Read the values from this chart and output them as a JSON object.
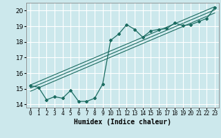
{
  "xlabel": "Humidex (Indice chaleur)",
  "bg_color": "#cce8ec",
  "grid_color": "#ffffff",
  "line_color": "#1a6b60",
  "xlim": [
    -0.5,
    23.5
  ],
  "ylim": [
    13.8,
    20.5
  ],
  "xticks": [
    0,
    1,
    2,
    3,
    4,
    5,
    6,
    7,
    8,
    9,
    10,
    11,
    12,
    13,
    14,
    15,
    16,
    17,
    18,
    19,
    20,
    21,
    22,
    23
  ],
  "yticks": [
    14,
    15,
    16,
    17,
    18,
    19,
    20
  ],
  "main_series_x": [
    0,
    1,
    2,
    3,
    4,
    5,
    6,
    7,
    8,
    9,
    10,
    11,
    12,
    13,
    14,
    15,
    16,
    17,
    18,
    19,
    20,
    21,
    22,
    23
  ],
  "main_series_y": [
    15.2,
    15.1,
    14.3,
    14.5,
    14.4,
    14.9,
    14.2,
    14.2,
    14.4,
    15.3,
    18.1,
    18.5,
    19.1,
    18.8,
    18.3,
    18.7,
    18.8,
    18.85,
    19.2,
    19.05,
    19.1,
    19.3,
    19.5,
    20.2
  ],
  "regression_lines": [
    {
      "x": [
        0,
        23
      ],
      "y": [
        15.25,
        20.25
      ]
    },
    {
      "x": [
        0,
        23
      ],
      "y": [
        15.05,
        20.05
      ]
    },
    {
      "x": [
        0,
        23
      ],
      "y": [
        14.85,
        19.85
      ]
    }
  ],
  "xlabel_fontsize": 7,
  "xlabel_fontweight": "bold",
  "tick_fontsize": 5.5,
  "ytick_fontsize": 6.5
}
